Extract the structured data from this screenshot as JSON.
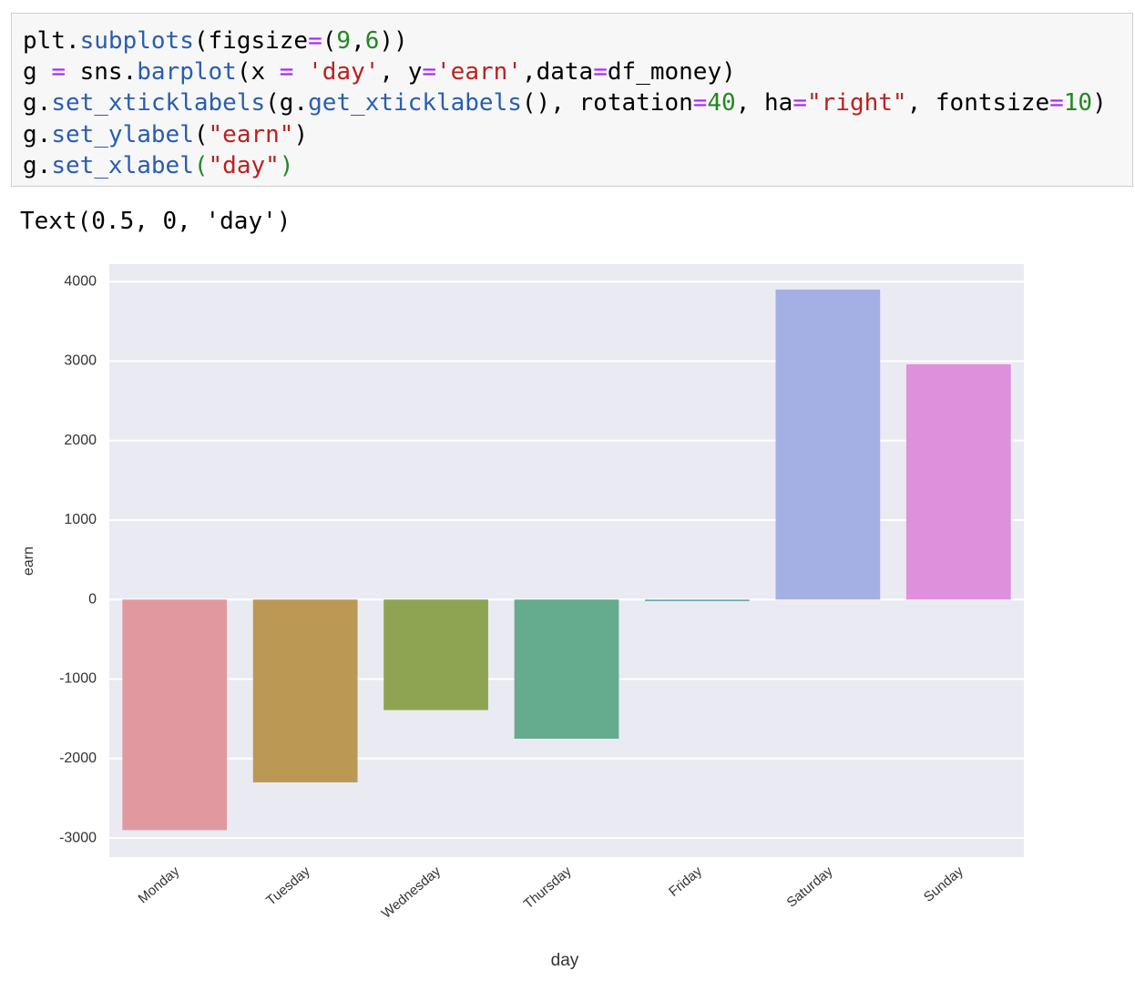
{
  "code": {
    "styles": {
      "plain": "#000000",
      "attr": "#2a5db0",
      "op": "#aa22ff",
      "str": "#ba2121",
      "num": "#228822"
    },
    "lines": [
      [
        [
          "plt.",
          "plain"
        ],
        [
          "subplots",
          "attr"
        ],
        [
          "(figsize",
          "plain"
        ],
        [
          "=",
          "op"
        ],
        [
          "(",
          "plain"
        ],
        [
          "9",
          "num"
        ],
        [
          ",",
          "plain"
        ],
        [
          "6",
          "num"
        ],
        [
          "))",
          "plain"
        ]
      ],
      [
        [
          "g ",
          "plain"
        ],
        [
          "=",
          "op"
        ],
        [
          " sns.",
          "plain"
        ],
        [
          "barplot",
          "attr"
        ],
        [
          "(x ",
          "plain"
        ],
        [
          "=",
          "op"
        ],
        [
          " ",
          "plain"
        ],
        [
          "'day'",
          "str"
        ],
        [
          ", y",
          "plain"
        ],
        [
          "=",
          "op"
        ],
        [
          "'earn'",
          "str"
        ],
        [
          ",data",
          "plain"
        ],
        [
          "=",
          "op"
        ],
        [
          "df_money)",
          "plain"
        ]
      ],
      [
        [
          "g.",
          "plain"
        ],
        [
          "set_xticklabels",
          "attr"
        ],
        [
          "(g.",
          "plain"
        ],
        [
          "get_xticklabels",
          "attr"
        ],
        [
          "(), rotation",
          "plain"
        ],
        [
          "=",
          "op"
        ],
        [
          "40",
          "num"
        ],
        [
          ", ha",
          "plain"
        ],
        [
          "=",
          "op"
        ],
        [
          "\"right\"",
          "str"
        ],
        [
          ", fontsize",
          "plain"
        ],
        [
          "=",
          "op"
        ],
        [
          "10",
          "num"
        ],
        [
          ")",
          "plain"
        ]
      ],
      [
        [
          "g.",
          "plain"
        ],
        [
          "set_ylabel",
          "attr"
        ],
        [
          "(",
          "plain"
        ],
        [
          "\"earn\"",
          "str"
        ],
        [
          ")",
          "plain"
        ]
      ],
      [
        [
          "g.",
          "plain"
        ],
        [
          "set_xlabel",
          "attr"
        ],
        [
          "(",
          "num"
        ],
        [
          "\"day\"",
          "str"
        ],
        [
          ")",
          "num"
        ]
      ]
    ]
  },
  "output": {
    "text": "Text(0.5, 0, 'day')"
  },
  "chart_data": {
    "type": "bar",
    "x_label": "day",
    "y_label": "earn",
    "categories": [
      "Monday",
      "Tuesday",
      "Wednesday",
      "Thursday",
      "Friday",
      "Saturday",
      "Sunday"
    ],
    "values": [
      -2900,
      -2300,
      -1390,
      -1750,
      -20,
      3900,
      2960
    ],
    "colors": [
      "#e1999f",
      "#bb9955",
      "#8fa452",
      "#65ab8d",
      "#6aaab8",
      "#a4b0e4",
      "#de90dc"
    ],
    "ylim": [
      -3240,
      4220
    ],
    "yticks": [
      -3000,
      -2000,
      -1000,
      0,
      1000,
      2000,
      3000,
      4000
    ],
    "grid": true,
    "background": "#eaeaf2"
  }
}
